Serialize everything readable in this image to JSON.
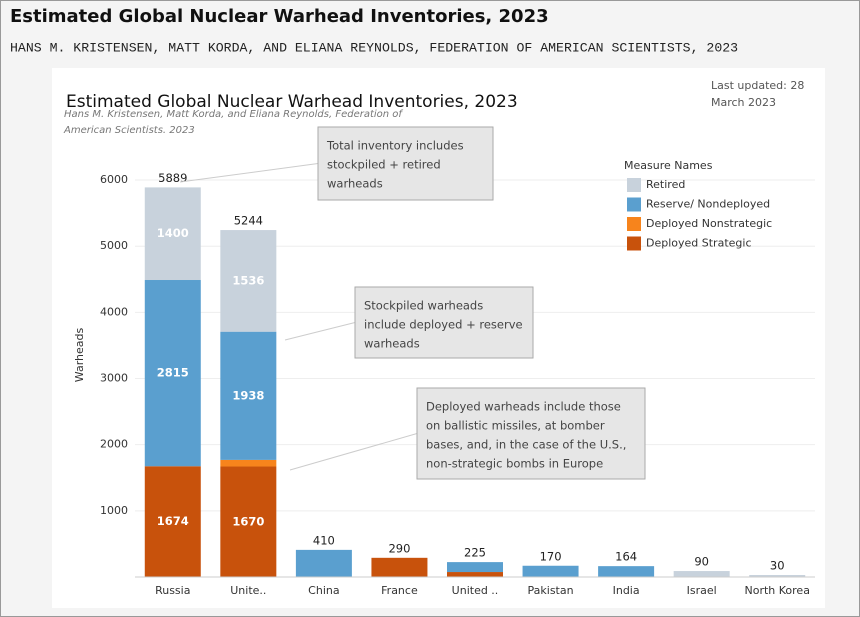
{
  "header": {
    "title": "Estimated Global Nuclear Warhead Inventories, 2023",
    "subtitle": "HANS M. KRISTENSEN, MATT KORDA, AND ELIANA REYNOLDS, FEDERATION OF AMERICAN SCIENTISTS, 2023"
  },
  "chart_data": {
    "type": "stacked_bar",
    "title": "Estimated Global Nuclear Warhead Inventories, 2023",
    "subtitle": [
      "Hans M. Kristensen, Matt Korda, and Eliana Reynolds, Federation of",
      "American Scientists. 2023"
    ],
    "updated": [
      "Last updated: 28",
      "March 2023"
    ],
    "y_label": "Warheads",
    "legend_title": "Measure Names",
    "categories": [
      "Russia",
      "Unite..",
      "China",
      "France",
      "United ..",
      "Pakistan",
      "India",
      "Israel",
      "North Korea"
    ],
    "series": [
      {
        "name": "Deployed Strategic",
        "color": "#c8520c",
        "values": [
          1674,
          1670,
          0,
          290,
          75,
          0,
          0,
          0,
          0
        ]
      },
      {
        "name": "Deployed Nonstrategic",
        "color": "#f7841c",
        "values": [
          0,
          100,
          0,
          0,
          0,
          0,
          0,
          0,
          0
        ]
      },
      {
        "name": "Reserve/ Nondeployed",
        "color": "#5a9fcf",
        "values": [
          2815,
          1938,
          410,
          0,
          150,
          170,
          164,
          0,
          0
        ]
      },
      {
        "name": "Retired",
        "color": "#c8d2dc",
        "values": [
          1400,
          1536,
          0,
          0,
          0,
          0,
          0,
          90,
          30
        ]
      }
    ],
    "totals": [
      5889,
      5244,
      410,
      290,
      225,
      170,
      164,
      90,
      30
    ],
    "ylim": [
      0,
      6250
    ],
    "yticks": [
      1000,
      2000,
      3000,
      4000,
      5000,
      6000
    ],
    "grid": true,
    "annotations": [
      [
        "Total inventory includes",
        "stockpiled + retired",
        "warheads"
      ],
      [
        "Stockpiled warheads",
        "include deployed + reserve",
        "warheads"
      ],
      [
        "Deployed warheads include those",
        "on ballistic missiles, at bomber",
        "bases, and, in the case of the U.S.,",
        "non-strategic bombs in Europe"
      ]
    ]
  }
}
